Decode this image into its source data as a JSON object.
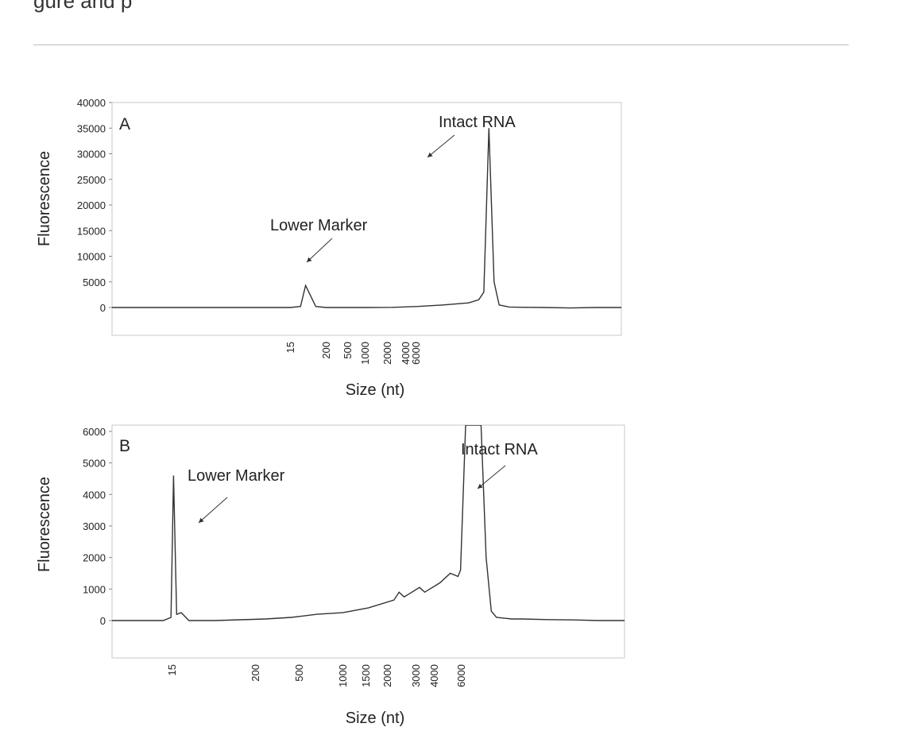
{
  "page": {
    "top_text": "gure and p"
  },
  "chart_data": [
    {
      "type": "line",
      "panel": "A",
      "xlabel": "Size (nt)",
      "ylabel": "Fluorescence",
      "ylim": [
        -5000,
        40000
      ],
      "yticks": [
        0,
        5000,
        10000,
        15000,
        20000,
        25000,
        30000,
        35000,
        40000
      ],
      "xtick_labels": [
        "15",
        "200",
        "500",
        "1000",
        "2000",
        "4000",
        "6000"
      ],
      "annotations": [
        {
          "text": "Lower Marker",
          "target": "15 nt peak"
        },
        {
          "text": "Intact RNA",
          "target": "4000 nt peak"
        }
      ],
      "series": [
        {
          "x": [
            0,
            10,
            20,
            30,
            35,
            37,
            38,
            40,
            42,
            45,
            50,
            55,
            60,
            65,
            70,
            72,
            73,
            74,
            75,
            76,
            78,
            80,
            85,
            90,
            95,
            100
          ],
          "y": [
            0,
            0,
            0,
            0,
            0,
            200,
            4300,
            200,
            0,
            0,
            0,
            30,
            200,
            500,
            900,
            1500,
            3000,
            35000,
            5000,
            500,
            100,
            50,
            0,
            -100,
            0,
            0
          ]
        }
      ],
      "grid": false,
      "legend": "none"
    },
    {
      "type": "line",
      "panel": "B",
      "xlabel": "Size (nt)",
      "ylabel": "Fluorescence",
      "ylim": [
        -1500,
        6200
      ],
      "yticks": [
        0,
        1000,
        2000,
        3000,
        4000,
        5000,
        6000
      ],
      "xtick_labels": [
        "15",
        "200",
        "500",
        "1000",
        "1500",
        "2000",
        "3000",
        "4000",
        "6000"
      ],
      "annotations": [
        {
          "text": "Lower Marker",
          "target": "15 nt peak"
        },
        {
          "text": "Intact RNA",
          "target": "4000 nt peak"
        }
      ],
      "series": [
        {
          "x": [
            0,
            10,
            11.5,
            12,
            12.6,
            13.5,
            15,
            20,
            30,
            35,
            40,
            45,
            50,
            55,
            56,
            57,
            58,
            60,
            61,
            62,
            63,
            64,
            66,
            67.5,
            68,
            69,
            70,
            71,
            72,
            73,
            74,
            75,
            78,
            80,
            85,
            90,
            95,
            100
          ],
          "y": [
            0,
            0,
            100,
            4600,
            200,
            250,
            0,
            0,
            50,
            100,
            200,
            250,
            400,
            650,
            900,
            750,
            850,
            1050,
            900,
            1000,
            1100,
            1200,
            1500,
            1400,
            1600,
            6200,
            6200,
            6200,
            6200,
            2000,
            300,
            100,
            50,
            50,
            30,
            20,
            0,
            0
          ]
        }
      ],
      "grid": false,
      "legend": "none"
    }
  ]
}
